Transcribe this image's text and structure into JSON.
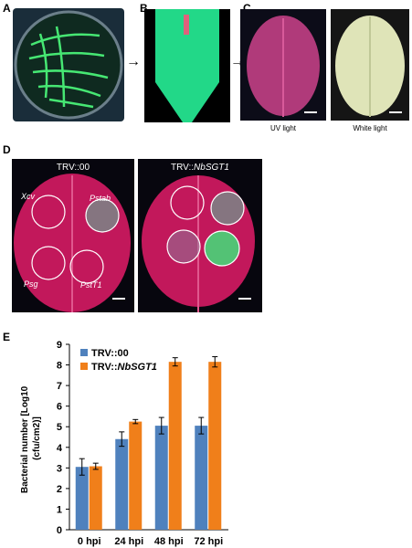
{
  "panels": {
    "A": {
      "letter": "A"
    },
    "B": {
      "letter": "B"
    },
    "C": {
      "letter": "C",
      "captions": [
        "UV light",
        "White light"
      ]
    },
    "D": {
      "letter": "D",
      "left_title": "TRV::00",
      "right_title_prefix": "TRV::",
      "right_title_gene": "NbSGT1",
      "sites": [
        "Xcv",
        "Pstab",
        "Psg",
        "PstT1"
      ]
    },
    "E": {
      "letter": "E"
    }
  },
  "arrows": {
    "symbol": "→"
  },
  "colors": {
    "series_trv00": "#4f81bd",
    "series_nbsgt1": "#f07f1a",
    "gfp": "#39e86a",
    "leaf_uv": "#c2185b"
  },
  "chart_data": {
    "type": "bar",
    "title": "",
    "xlabel": "",
    "ylabel": "Bacterial number [Log10 (cfu/cm2)]",
    "ylabel_lines": [
      "Bacterial number [Log10",
      "(cfu/cm2)]"
    ],
    "ylim": [
      0,
      9
    ],
    "yticks": [
      0,
      1,
      2,
      3,
      4,
      5,
      6,
      7,
      8,
      9
    ],
    "categories": [
      "0 hpi",
      "24 hpi",
      "48 hpi",
      "72 hpi"
    ],
    "legend_position": "top-left",
    "grid": false,
    "series": [
      {
        "name": "TRV::00",
        "name_prefix": "TRV::",
        "name_gene": "00",
        "color": "#4f81bd",
        "values": [
          3.05,
          4.4,
          5.05,
          5.05
        ],
        "errors": [
          0.4,
          0.35,
          0.4,
          0.4
        ]
      },
      {
        "name": "TRV::NbSGT1",
        "name_prefix": "TRV::",
        "name_gene": "NbSGT1",
        "color": "#f07f1a",
        "values": [
          3.08,
          5.25,
          8.15,
          8.15
        ],
        "errors": [
          0.15,
          0.1,
          0.2,
          0.25
        ]
      }
    ]
  }
}
